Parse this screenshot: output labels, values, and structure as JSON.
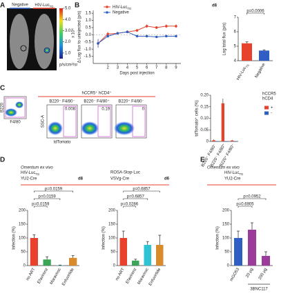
{
  "panel_labels": [
    "A",
    "B",
    "C",
    "D",
    "E"
  ],
  "panel_a": {
    "groups": [
      "Negative",
      {
        "text": "HIV-Luc",
        "sub": "TG"
      }
    ],
    "colorbar": {
      "lim": [
        0.5,
        5
      ],
      "ticks": [
        {
          "value": 5,
          "label": "5.0"
        },
        {
          "value": 4,
          "label": "4.0"
        },
        {
          "value": 3,
          "label": "3.0"
        },
        {
          "value": 2,
          "label": "2.0"
        },
        {
          "value": 1,
          "label": "1.0"
        }
      ],
      "multiplier": "x 10⁶",
      "unit": "p/s/cm²/sr"
    }
  },
  "panel_c": {
    "gate_axes": [
      "B220",
      "F4/80"
    ],
    "header": "hCCR5⁺ hCD4⁺",
    "plots": [
      {
        "title": "B220⁻ F4/80⁻",
        "percent": 0.008
      },
      {
        "title": "B220⁻ F4/80⁺",
        "percent": 0.19
      },
      {
        "title": "B220⁺ F4/80⁻",
        "percent": 0
      }
    ],
    "y_axis": "SSC-A",
    "x_axis": "tdTomato"
  },
  "panel_d_header": "Omentum ex vivo",
  "chart_data": [
    {
      "type": "line",
      "x_label": "Days post injection",
      "y_label": "Δ Log flux to uninjected (p/s)",
      "x": [
        1,
        2,
        3,
        4,
        5,
        6,
        7,
        8,
        9
      ],
      "xlim": [
        0.5,
        9.5
      ],
      "xticks": [
        2,
        3,
        4,
        5,
        6,
        7,
        8,
        9
      ],
      "ylim": [
        -2,
        1.7
      ],
      "yticks": [
        1.5,
        {
          "value": 1,
          "label": "1.0"
        },
        0.5,
        {
          "value": 0,
          "label": "0.0"
        },
        -0.5,
        {
          "value": -1,
          "label": "-1.0"
        },
        -1.5
      ],
      "series": [
        {
          "name": {
            "text": "HIV-Luc",
            "sub": "TG"
          },
          "color": "#e8412c",
          "values": [
            -0.6,
            0.05,
            0.1,
            0.2,
            0.3,
            0.6,
            0.5,
            0.6,
            0.6
          ],
          "errors": [
            0.3,
            0.15,
            0.1,
            0.1,
            0.1,
            0.12,
            0.1,
            0.12,
            0.12
          ]
        },
        {
          "name": "Negative",
          "color": "#2f5fc4",
          "values": [
            -0.6,
            -0.1,
            0.1,
            0.2,
            -0.1,
            -0.1,
            -0.15,
            -0.1,
            -0.1
          ],
          "errors": [
            0.3,
            0.1,
            0.08,
            0.08,
            0.05,
            0.05,
            0.05,
            0.05,
            0.05
          ]
        }
      ]
    },
    {
      "type": "bar",
      "title": "d8",
      "y_label": "Log total flux (p/s)",
      "categories": [
        {
          "text": "HIV-Luc",
          "sub": "TG"
        },
        "Negative"
      ],
      "values": [
        5.2,
        4.7
      ],
      "errors": [
        0.1,
        0.05
      ],
      "colors": [
        "#e8412c",
        "#2f5fc4"
      ],
      "ylim": [
        4,
        7
      ],
      "yticks": [
        4,
        5,
        6,
        7
      ],
      "p_values": [
        "p=0.0006"
      ]
    },
    {
      "type": "grouped_bar",
      "y_label": "tdTomato⁺ cells (%)",
      "categories": [
        "B220⁻ F4/80⁻",
        "B220⁻ F4/80⁺",
        "B220⁺ F4/80⁻"
      ],
      "legend_title": [
        "hCCR5",
        "hCD4"
      ],
      "series": [
        {
          "name": "+",
          "color": "#e8412c",
          "values": [
            0.005,
            0.165,
            0.004
          ],
          "errors": [
            0.004,
            0.02,
            0.003
          ]
        },
        {
          "name": "-",
          "color": "#2f5fc4",
          "values": [
            0,
            0,
            0
          ],
          "errors": [
            0,
            0,
            0
          ]
        }
      ],
      "ylim": [
        0,
        0.2
      ],
      "yticks": [
        0,
        0.05,
        {
          "value": 0.1,
          "label": "0.10"
        },
        0.15,
        {
          "value": 0.2,
          "label": "0.20"
        }
      ]
    },
    {
      "type": "bar",
      "title_lines": [
        {
          "text": "HIV-Luc",
          "sub": "TG"
        },
        "YU2-Cre"
      ],
      "day": "d8",
      "y_label": "Infection (%)",
      "categories": [
        "no ART",
        "Efavirenz",
        "Maraviroc",
        "Enfuvirtide"
      ],
      "values": [
        100,
        22,
        1,
        28
      ],
      "errors": [
        12,
        10,
        1,
        8
      ],
      "colors": [
        "#e8412c",
        "#3aa655",
        "#2ec4d6",
        "#d98a2b"
      ],
      "ylim": [
        0,
        200
      ],
      "yticks": [
        0,
        50,
        100,
        150,
        200
      ],
      "p_values": [
        "p=0.0159",
        "p=0.0159",
        "p=0.0159"
      ]
    },
    {
      "type": "bar",
      "title_lines": [
        "ROSA-Stop-Luc",
        "VSVg-Cre"
      ],
      "day": "d6",
      "y_label": "Infection (%)",
      "categories": [
        "no ART",
        "Efavirenz",
        "Maraviroc",
        "Enfuvirtide"
      ],
      "values": [
        100,
        18,
        75,
        75
      ],
      "errors": [
        25,
        5,
        12,
        35
      ],
      "colors": [
        "#e8412c",
        "#3aa655",
        "#2ec4d6",
        "#d98a2b"
      ],
      "ylim": [
        0,
        200
      ],
      "yticks": [
        0,
        50,
        100,
        150,
        200
      ],
      "p_values": [
        "p=0.0286",
        "p=0.6857",
        "p=0.6857"
      ]
    },
    {
      "type": "bar",
      "header": "Omentum ex vivo",
      "title_lines": [
        {
          "text": "HIV-Luc",
          "sub": "TG"
        },
        "YU2-Cre"
      ],
      "y_label": "Infection (%)",
      "categories": [
        "mGO53",
        "20 µg",
        "200 µg"
      ],
      "group_label": "3BNC117",
      "values": [
        100,
        130,
        35
      ],
      "errors": [
        25,
        25,
        15
      ],
      "colors": [
        "#2f5fc4",
        "#9b3b9b",
        "#9b3b9b"
      ],
      "ylim": [
        0,
        200
      ],
      "yticks": [
        0,
        50,
        100,
        150,
        200
      ],
      "p_values": [
        "p=0.6905",
        "p=0.0952"
      ]
    }
  ]
}
